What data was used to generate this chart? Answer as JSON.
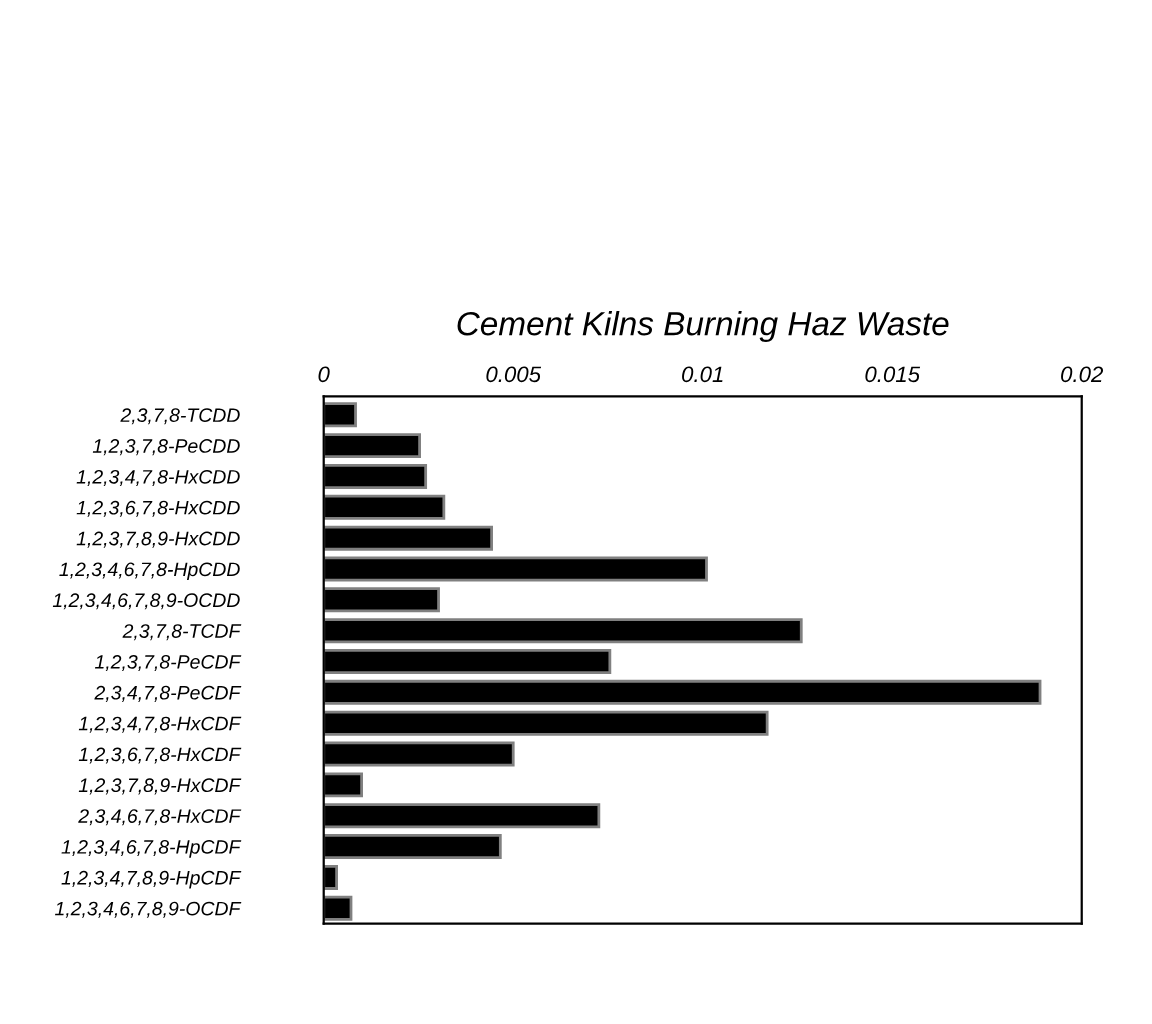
{
  "chart_data": {
    "type": "bar",
    "orientation": "horizontal",
    "title": "Cement Kilns Burning Haz Waste",
    "categories": [
      "2,3,7,8-TCDD",
      "1,2,3,7,8-PeCDD",
      "1,2,3,4,7,8-HxCDD",
      "1,2,3,6,7,8-HxCDD",
      "1,2,3,7,8,9-HxCDD",
      "1,2,3,4,6,7,8-HpCDD",
      "1,2,3,4,6,7,8,9-OCDD",
      "2,3,7,8-TCDF",
      "1,2,3,7,8-PeCDF",
      "2,3,4,7,8-PeCDF",
      "1,2,3,4,7,8-HxCDF",
      "1,2,3,6,7,8-HxCDF",
      "1,2,3,7,8,9-HxCDF",
      "2,3,4,6,7,8-HxCDF",
      "1,2,3,4,6,7,8-HpCDF",
      "1,2,3,4,7,8,9-HpCDF",
      "1,2,3,4,6,7,8,9-OCDF"
    ],
    "values": [
      0.00084,
      0.00253,
      0.00269,
      0.00317,
      0.00443,
      0.0101,
      0.00303,
      0.0126,
      0.00755,
      0.0189,
      0.0117,
      0.005,
      0.001,
      0.00726,
      0.00466,
      0.00034,
      0.00072
    ],
    "color": "#000000",
    "xlim": [
      0,
      0.02
    ],
    "xticks": [
      0,
      0.005,
      0.01,
      0.015,
      0.02
    ],
    "grid": false,
    "legend": false
  }
}
